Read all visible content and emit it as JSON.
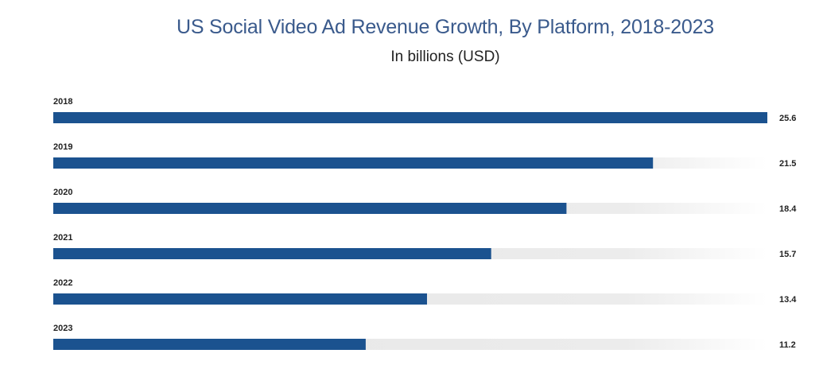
{
  "chart_data": {
    "type": "bar",
    "orientation": "horizontal",
    "title": "US Social Video Ad Revenue Growth, By Platform, 2018-2023",
    "subtitle": "In billions (USD)",
    "categories": [
      "2018",
      "2019",
      "2020",
      "2021",
      "2022",
      "2023"
    ],
    "values": [
      25.6,
      21.5,
      18.4,
      15.7,
      13.4,
      11.2
    ],
    "value_labels": [
      "25.6",
      "21.5",
      "18.4",
      "15.7",
      "13.4",
      "11.2"
    ],
    "xlim": [
      0,
      25.6
    ],
    "grid": false,
    "legend": "none"
  },
  "colors": {
    "bar": "#1b528f",
    "track": "#e8e8e8",
    "title": "#3a5a8c"
  }
}
